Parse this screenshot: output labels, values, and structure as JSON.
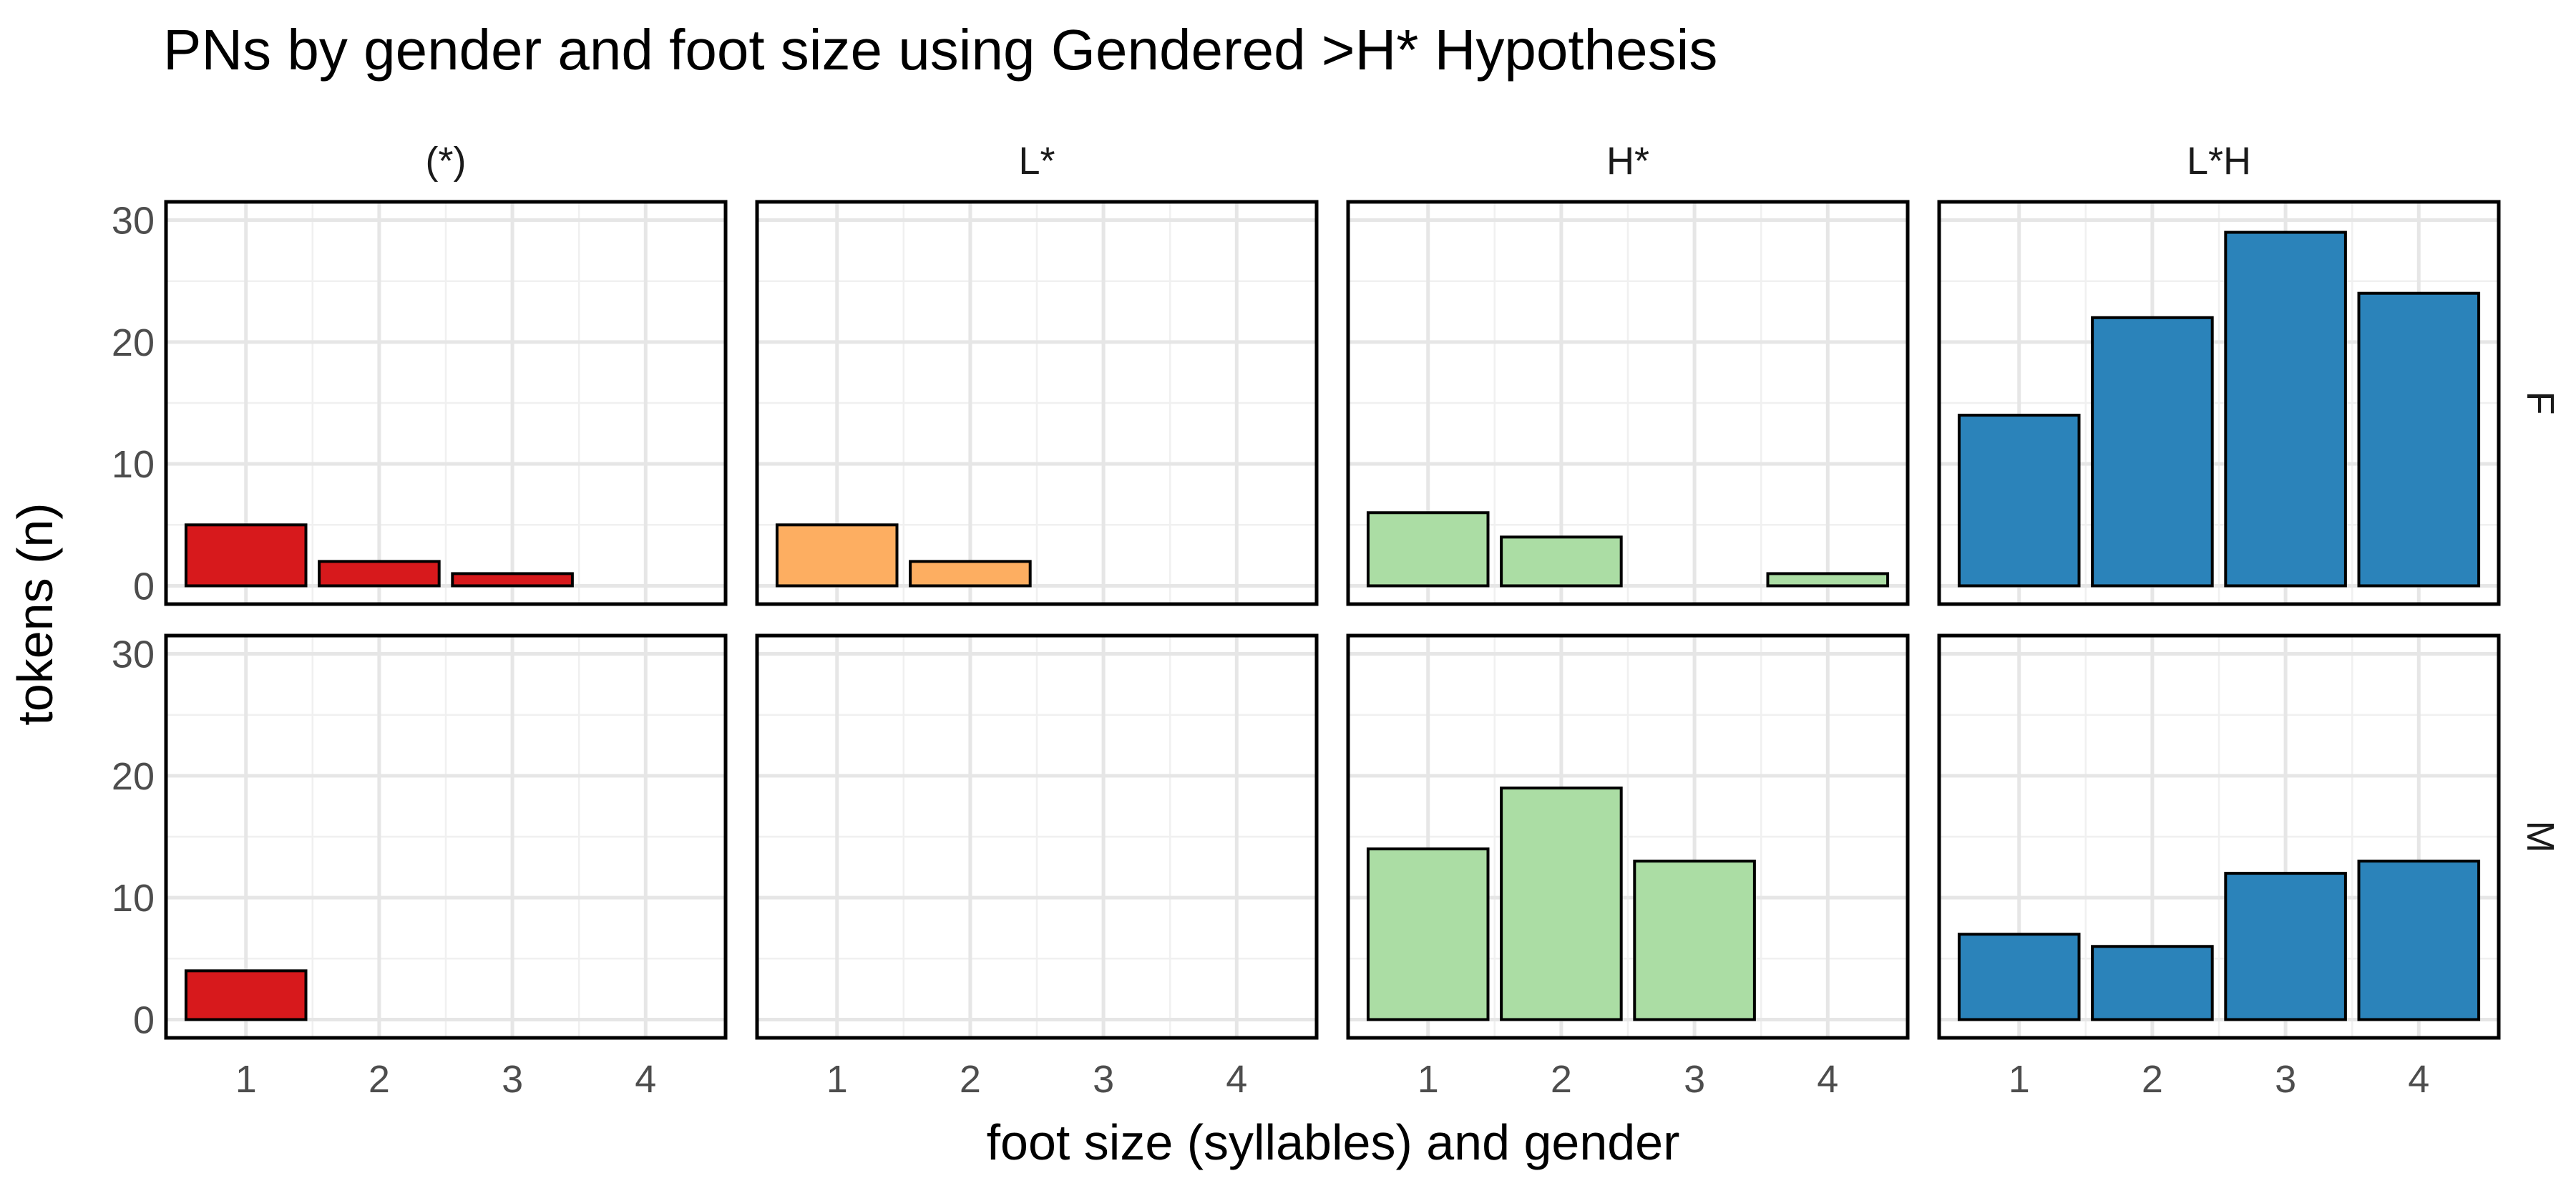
{
  "chart_data": {
    "type": "bar",
    "title": "PNs by gender and foot size using Gendered >H* Hypothesis",
    "xlabel": "foot size (syllables) and gender",
    "ylabel": "tokens (n)",
    "categories": [
      "1",
      "2",
      "3",
      "4"
    ],
    "y_ticks": [
      0,
      10,
      20,
      30
    ],
    "ylim": [
      -1.5,
      31.5
    ],
    "grid": true,
    "columns": [
      {
        "label": "(*)",
        "color": "#d7191c"
      },
      {
        "label": "L*",
        "color": "#fdae61"
      },
      {
        "label": "H*",
        "color": "#abdda4"
      },
      {
        "label": "L*H",
        "color": "#2b83ba"
      }
    ],
    "rows": [
      "F",
      "M"
    ],
    "panels": [
      {
        "row": "F",
        "column": "(*)",
        "values": [
          5,
          2,
          1,
          0
        ]
      },
      {
        "row": "F",
        "column": "L*",
        "values": [
          5,
          2,
          0,
          0
        ]
      },
      {
        "row": "F",
        "column": "H*",
        "values": [
          6,
          4,
          0,
          1
        ]
      },
      {
        "row": "F",
        "column": "L*H",
        "values": [
          14,
          22,
          29,
          24
        ]
      },
      {
        "row": "M",
        "column": "(*)",
        "values": [
          4,
          0,
          0,
          0
        ]
      },
      {
        "row": "M",
        "column": "L*",
        "values": [
          0,
          0,
          0,
          0
        ]
      },
      {
        "row": "M",
        "column": "H*",
        "values": [
          14,
          19,
          13,
          0
        ]
      },
      {
        "row": "M",
        "column": "L*H",
        "values": [
          7,
          6,
          12,
          13
        ]
      }
    ]
  }
}
